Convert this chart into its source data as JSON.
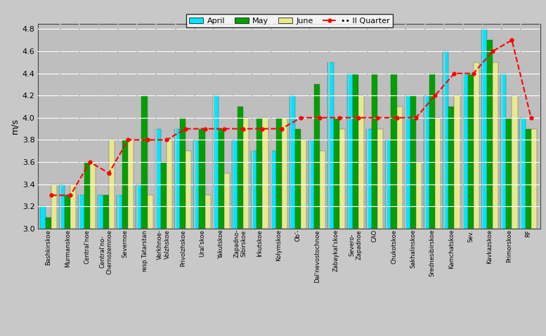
{
  "categories": [
    "Bashkirskoe",
    "Murmanskoe",
    "Central'noe",
    "Central'no-\nChernozemnoe",
    "Severnoe",
    "resp.Tatarstan",
    "Verkhnoe-\nVolzhskoe",
    "Privolzhskoe",
    "Ural'skoe",
    "Yakutskoe",
    "Zapadno-\nSibirskoe",
    "Irkutskoe",
    "Kolymskoe",
    "Ob'-",
    "Dal'nevostochnoe",
    "Zabaykal'skoe",
    "Severo-\nZapadnoe",
    "CAO",
    "Chukotskoe",
    "Sakhalinskoe",
    "Srednesibirskoe",
    "Kamchatskoe",
    "Sev.",
    "Kavkazskoe",
    "Primorskoe",
    "RF"
  ],
  "april": [
    3.2,
    3.4,
    3.3,
    3.3,
    3.3,
    3.4,
    3.9,
    3.9,
    3.8,
    4.2,
    3.8,
    3.7,
    3.7,
    4.2,
    3.8,
    4.5,
    4.4,
    3.9,
    3.8,
    4.2,
    4.2,
    4.6,
    4.4,
    4.8,
    4.4,
    4.0
  ],
  "may": [
    3.1,
    3.3,
    3.6,
    3.3,
    3.8,
    4.2,
    3.6,
    4.0,
    3.9,
    3.9,
    4.1,
    4.0,
    4.0,
    3.9,
    4.3,
    4.0,
    4.4,
    4.4,
    4.4,
    4.2,
    4.4,
    4.1,
    4.4,
    4.7,
    4.0,
    3.9
  ],
  "june": [
    3.4,
    3.4,
    3.6,
    3.8,
    3.8,
    3.3,
    3.8,
    3.7,
    3.3,
    3.5,
    4.0,
    4.0,
    4.0,
    3.8,
    3.7,
    3.9,
    4.2,
    3.9,
    4.1,
    3.6,
    4.0,
    4.2,
    4.5,
    4.5,
    4.2,
    3.9
  ],
  "ii_quarter": [
    3.3,
    3.3,
    3.6,
    3.5,
    3.8,
    3.8,
    3.8,
    3.9,
    3.9,
    3.9,
    3.9,
    3.9,
    3.9,
    4.0,
    4.0,
    4.0,
    4.0,
    4.0,
    4.0,
    4.0,
    4.2,
    4.4,
    4.4,
    4.6,
    4.7,
    4.0
  ],
  "color_april": "#00E5FF",
  "color_may": "#00A000",
  "color_june": "#E8E890",
  "color_iiq": "#FF0000",
  "ylabel": "m/s",
  "ymin": 3.0,
  "ymax": 4.85,
  "yticks": [
    3.0,
    3.2,
    3.4,
    3.6,
    3.8,
    4.0,
    4.2,
    4.4,
    4.6,
    4.8
  ],
  "bg_color": "#BEBEBE",
  "fig_color": "#C8C8C8"
}
